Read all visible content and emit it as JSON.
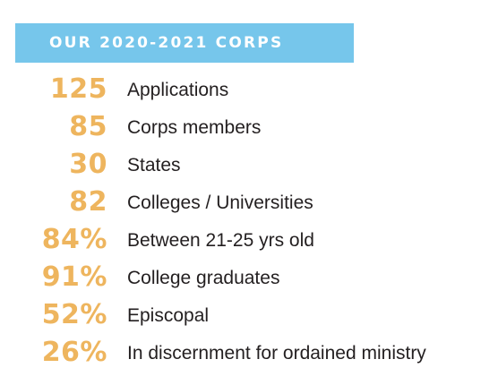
{
  "banner": {
    "title": "OUR 2020-2021 CORPS",
    "background_color": "#76c6eb",
    "text_color": "#ffffff"
  },
  "colors": {
    "number": "#eeb55e",
    "label": "#231f20"
  },
  "stats": [
    {
      "number": "125",
      "label": "Applications"
    },
    {
      "number": "85",
      "label": "Corps members"
    },
    {
      "number": "30",
      "label": "States"
    },
    {
      "number": "82",
      "label": "Colleges / Universities"
    },
    {
      "number": "84%",
      "label": "Between 21-25 yrs old"
    },
    {
      "number": "91%",
      "label": "College graduates"
    },
    {
      "number": "52%",
      "label": "Episcopal"
    },
    {
      "number": "26%",
      "label": "In discernment for ordained ministry"
    }
  ]
}
